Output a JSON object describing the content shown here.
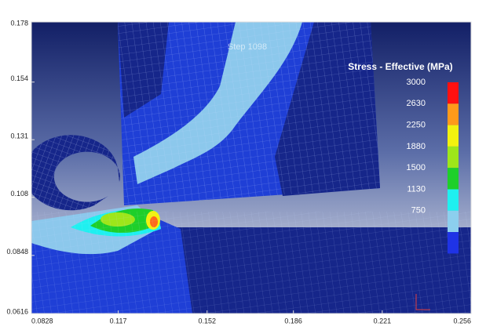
{
  "plot": {
    "step": "Step 1098",
    "xlim": [
      0.0828,
      0.256
    ],
    "xticks": [
      0.0828,
      0.117,
      0.152,
      0.186,
      0.221,
      0.256
    ],
    "ylim": [
      0.0616,
      0.178
    ],
    "yticks": [
      0.0616,
      0.0848,
      0.108,
      0.131,
      0.154,
      0.178
    ]
  },
  "legend": {
    "title": "Stress - Effective (MPa)",
    "levels": [
      3000,
      2630,
      2250,
      1880,
      1500,
      1130,
      750
    ],
    "colors": [
      "#ff1010",
      "#ff9a1a",
      "#f2f20f",
      "#9ee61a",
      "#1ecf2a",
      "#1ff0f0",
      "#8ccfee",
      "#1f33e6"
    ]
  }
}
